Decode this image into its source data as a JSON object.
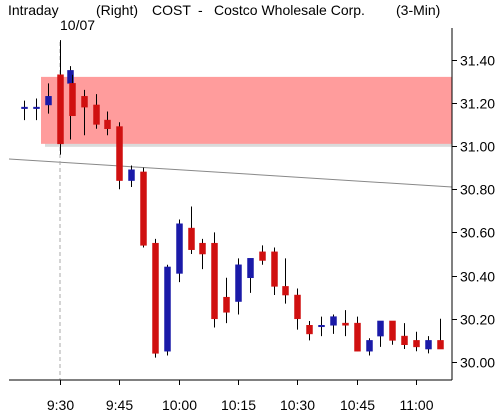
{
  "header": {
    "left": "Intraday",
    "side": "(Right)",
    "ticker": "COST",
    "dash": "-",
    "company": "Costco Wholesale Corp.",
    "interval": "(3-Min)"
  },
  "date_label": "10/07",
  "chart_data": {
    "type": "candlestick",
    "title": "Intraday (Right) COST - Costco Wholesale Corp. (3-Min)",
    "x_ticks": [
      "9:30",
      "9:45",
      "10:00",
      "10:15",
      "10:30",
      "10:45",
      "11:00"
    ],
    "y_ticks": [
      "30.00",
      "30.20",
      "30.40",
      "30.60",
      "30.80",
      "31.00",
      "31.20",
      "31.40"
    ],
    "ylim": [
      29.92,
      31.53
    ],
    "y_axis_side": "right",
    "grid": false,
    "colors": {
      "up": "#1a1aa8",
      "down": "#d01010",
      "band": "#ff9c9c",
      "line": "#888888"
    },
    "band": {
      "low": 31.01,
      "high": 31.32
    },
    "trend_line": {
      "from": [
        "9:18",
        30.94
      ],
      "to": [
        "11:30",
        30.81
      ]
    },
    "session_marker": "9:30",
    "candles": [
      {
        "t": "9:21",
        "o": 31.18,
        "h": 31.21,
        "l": 31.12,
        "c": 31.18
      },
      {
        "t": "9:24",
        "o": 31.18,
        "h": 31.22,
        "l": 31.12,
        "c": 31.18
      },
      {
        "t": "9:27",
        "o": 31.19,
        "h": 31.29,
        "l": 31.15,
        "c": 31.23
      },
      {
        "t": "9:30",
        "o": 31.33,
        "h": 31.49,
        "l": 30.96,
        "c": 31.01
      },
      {
        "t": "9:30",
        "o": 31.29,
        "h": 31.37,
        "l": 31.03,
        "c": 31.35
      },
      {
        "t": "9:33",
        "o": 31.29,
        "h": 31.33,
        "l": 31.14,
        "c": 31.14
      },
      {
        "t": "9:36",
        "o": 31.23,
        "h": 31.26,
        "l": 31.05,
        "c": 31.18
      },
      {
        "t": "9:39",
        "o": 31.19,
        "h": 31.24,
        "l": 31.08,
        "c": 31.1
      },
      {
        "t": "9:42",
        "o": 31.12,
        "h": 31.16,
        "l": 31.05,
        "c": 31.08
      },
      {
        "t": "9:45",
        "o": 31.09,
        "h": 31.11,
        "l": 30.8,
        "c": 30.84
      },
      {
        "t": "9:48",
        "o": 30.84,
        "h": 30.91,
        "l": 30.81,
        "c": 30.89
      },
      {
        "t": "9:51",
        "o": 30.88,
        "h": 30.9,
        "l": 30.53,
        "c": 30.54
      },
      {
        "t": "9:54",
        "o": 30.55,
        "h": 30.57,
        "l": 30.02,
        "c": 30.04
      },
      {
        "t": "9:57",
        "o": 30.05,
        "h": 30.45,
        "l": 30.03,
        "c": 30.44
      },
      {
        "t": "10:00",
        "o": 30.41,
        "h": 30.66,
        "l": 30.37,
        "c": 30.64
      },
      {
        "t": "10:03",
        "o": 30.62,
        "h": 30.72,
        "l": 30.5,
        "c": 30.52
      },
      {
        "t": "10:06",
        "o": 30.55,
        "h": 30.57,
        "l": 30.43,
        "c": 30.5
      },
      {
        "t": "10:09",
        "o": 30.55,
        "h": 30.6,
        "l": 30.16,
        "c": 30.2
      },
      {
        "t": "10:12",
        "o": 30.3,
        "h": 30.39,
        "l": 30.18,
        "c": 30.23
      },
      {
        "t": "10:15",
        "o": 30.28,
        "h": 30.48,
        "l": 30.22,
        "c": 30.45
      },
      {
        "t": "10:18",
        "o": 30.39,
        "h": 30.48,
        "l": 30.32,
        "c": 30.48
      },
      {
        "t": "10:21",
        "o": 30.51,
        "h": 30.54,
        "l": 30.45,
        "c": 30.47
      },
      {
        "t": "10:24",
        "o": 30.51,
        "h": 30.53,
        "l": 30.31,
        "c": 30.35
      },
      {
        "t": "10:27",
        "o": 30.35,
        "h": 30.48,
        "l": 30.27,
        "c": 30.31
      },
      {
        "t": "10:30",
        "o": 30.31,
        "h": 30.34,
        "l": 30.15,
        "c": 30.2
      },
      {
        "t": "10:33",
        "o": 30.17,
        "h": 30.19,
        "l": 30.1,
        "c": 30.13
      },
      {
        "t": "10:36",
        "o": 30.17,
        "h": 30.21,
        "l": 30.12,
        "c": 30.17
      },
      {
        "t": "10:39",
        "o": 30.17,
        "h": 30.22,
        "l": 30.13,
        "c": 30.21
      },
      {
        "t": "10:42",
        "o": 30.18,
        "h": 30.24,
        "l": 30.12,
        "c": 30.17
      },
      {
        "t": "10:45",
        "o": 30.18,
        "h": 30.21,
        "l": 30.05,
        "c": 30.05
      },
      {
        "t": "10:48",
        "o": 30.05,
        "h": 30.11,
        "l": 30.03,
        "c": 30.1
      },
      {
        "t": "10:51",
        "o": 30.12,
        "h": 30.19,
        "l": 30.07,
        "c": 30.19
      },
      {
        "t": "10:54",
        "o": 30.19,
        "h": 30.19,
        "l": 30.08,
        "c": 30.1
      },
      {
        "t": "10:57",
        "o": 30.12,
        "h": 30.18,
        "l": 30.06,
        "c": 30.08
      },
      {
        "t": "11:00",
        "o": 30.1,
        "h": 30.14,
        "l": 30.05,
        "c": 30.07
      },
      {
        "t": "11:03",
        "o": 30.06,
        "h": 30.12,
        "l": 30.04,
        "c": 30.1
      },
      {
        "t": "11:06",
        "o": 30.1,
        "h": 30.2,
        "l": 30.06,
        "c": 30.06
      }
    ]
  }
}
